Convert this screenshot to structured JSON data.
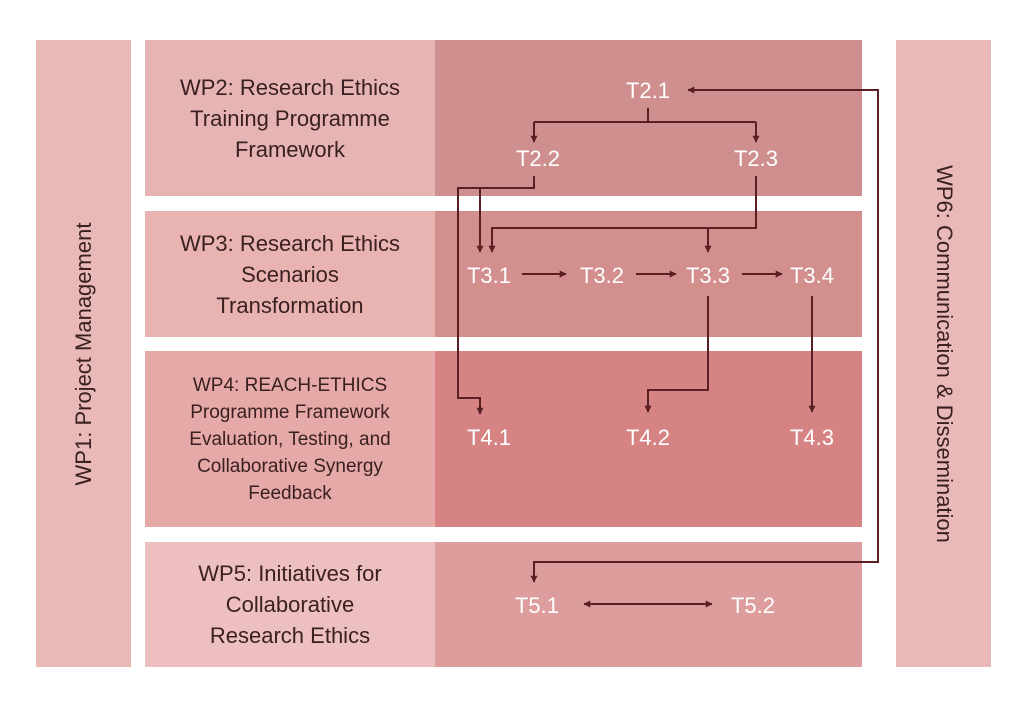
{
  "wp1": {
    "label": "WP1: Project Management"
  },
  "wp6": {
    "label": "WP6: Communication & Dissemination"
  },
  "wp2": {
    "lines": [
      "WP2: Research Ethics",
      "Training Programme",
      "Framework"
    ]
  },
  "wp3": {
    "lines": [
      "WP3: Research Ethics",
      "Scenarios",
      "Transformation"
    ]
  },
  "wp4": {
    "lines": [
      "WP4: REACH-ETHICS",
      "Programme Framework",
      "Evaluation, Testing, and",
      "Collaborative Synergy",
      "Feedback"
    ]
  },
  "wp5": {
    "lines": [
      "WP5: Initiatives for",
      "Collaborative",
      "Research Ethics"
    ]
  },
  "tasks": {
    "t2_1": "T2.1",
    "t2_2": "T2.2",
    "t2_3": "T2.3",
    "t3_1": "T3.1",
    "t3_2": "T3.2",
    "t3_3": "T3.3",
    "t3_4": "T3.4",
    "t4_1": "T4.1",
    "t4_2": "T4.2",
    "t4_3": "T4.3",
    "t5_1": "T5.1",
    "t5_2": "T5.2"
  },
  "colors": {
    "connector": "#5a1f23",
    "task_text": "#ffffff",
    "label_text": "#3a2020"
  }
}
